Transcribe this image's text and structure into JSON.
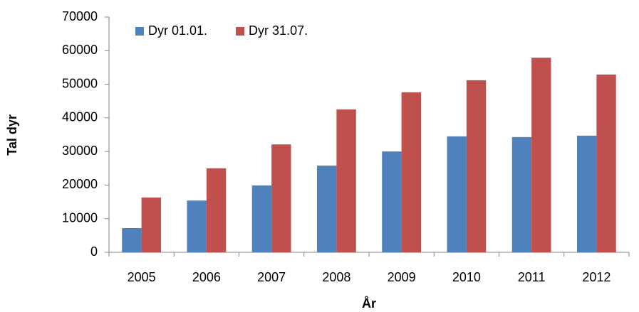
{
  "chart_data": {
    "type": "bar",
    "x_label": "År",
    "y_label": "Tal dyr",
    "categories": [
      "2005",
      "2006",
      "2007",
      "2008",
      "2009",
      "2010",
      "2011",
      "2012"
    ],
    "series": [
      {
        "name": "Dyr 01.01.",
        "color": "#4f81bd",
        "values": [
          7200,
          15400,
          19900,
          25800,
          30000,
          34500,
          34300,
          34700
        ]
      },
      {
        "name": "Dyr 31.07.",
        "color": "#c0504d",
        "values": [
          16300,
          25000,
          32100,
          42500,
          47600,
          51200,
          57900,
          52900
        ]
      }
    ],
    "ylim": [
      0,
      70000
    ],
    "yticks": [
      0,
      10000,
      20000,
      30000,
      40000,
      50000,
      60000,
      70000
    ],
    "grid": false,
    "legend": "upper left"
  }
}
